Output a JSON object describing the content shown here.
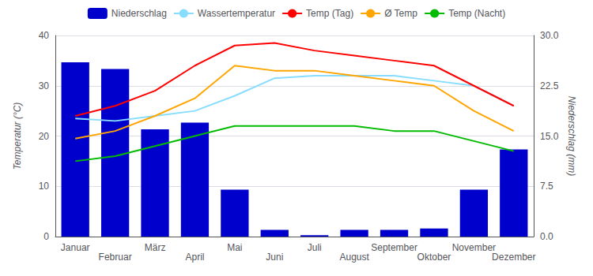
{
  "chart_data": {
    "type": "bar",
    "categories": [
      "Januar",
      "Februar",
      "März",
      "April",
      "Mai",
      "Juni",
      "Juli",
      "August",
      "September",
      "Oktober",
      "November",
      "Dezember"
    ],
    "series": [
      {
        "name": "Niederschlag",
        "type": "bar",
        "axis": "y2",
        "color": "#0000cc",
        "values": [
          26,
          25,
          16,
          17,
          7,
          1,
          0.2,
          1,
          1,
          1.2,
          7,
          13
        ]
      },
      {
        "name": "Wassertemperatur",
        "type": "line",
        "color": "#88ddff",
        "values": [
          23.5,
          23,
          24,
          25,
          28,
          31.5,
          32,
          32,
          32,
          31,
          30,
          26
        ]
      },
      {
        "name": "Temp (Tag)",
        "type": "line",
        "color": "#ff0000",
        "values": [
          24,
          26,
          29,
          34,
          38,
          38.5,
          37,
          36,
          35,
          34,
          30,
          26
        ]
      },
      {
        "name": "Ø Temp",
        "type": "line",
        "color": "#ffa500",
        "values": [
          19.5,
          21,
          24,
          27.5,
          34,
          33,
          33,
          32,
          31,
          30,
          25,
          21
        ]
      },
      {
        "name": "Temp (Nacht)",
        "type": "line",
        "color": "#00bb00",
        "values": [
          15,
          16,
          18,
          20,
          22,
          22,
          22,
          22,
          21,
          21,
          19,
          17
        ]
      }
    ],
    "ylabel": "Temperatur (°C)",
    "y2label": "Niederschlag (mm)",
    "ylim": [
      0,
      40
    ],
    "yticks": [
      0,
      10,
      20,
      30,
      40
    ],
    "y2lim": [
      0,
      30
    ],
    "y2ticks": [
      {
        "value": 0,
        "label": "0.0"
      },
      7.5,
      {
        "value": 15,
        "label": "15.0"
      },
      22.5,
      {
        "value": 30,
        "label": "30.0"
      }
    ],
    "grid": true,
    "legend": "top"
  }
}
